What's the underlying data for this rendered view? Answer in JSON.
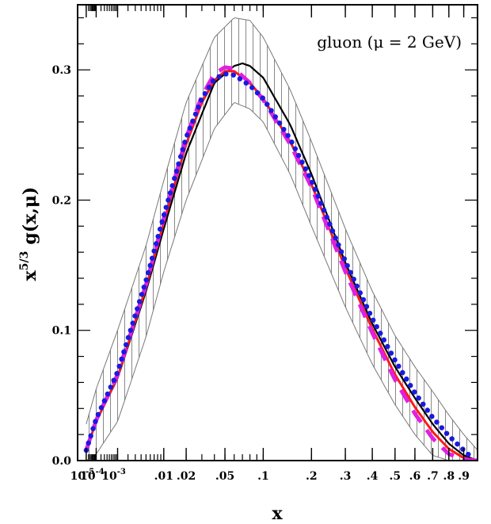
{
  "chart_data": {
    "type": "line",
    "title": "gluon (μ = 2 GeV)",
    "xlabel": "x",
    "ylabel": "x⁵ᐟ³ g(x,μ)",
    "ylabel_parts": {
      "base": "x",
      "exp": "5/3",
      "rest": "g(x,μ)"
    },
    "x_scale": "x^(1/3)",
    "xlim": [
      0,
      1
    ],
    "ylim": [
      0,
      0.35
    ],
    "y_ticks": [
      0.0,
      0.1,
      0.2,
      0.3
    ],
    "y_tick_labels": [
      "0.0",
      "0.1",
      "0.2",
      "0.3"
    ],
    "x_ticks": [
      {
        "v": 1e-05,
        "label": "10",
        "sup": "-5"
      },
      {
        "v": 0.0001,
        "label": "10",
        "sup": "-4"
      },
      {
        "v": 0.001,
        "label": "10",
        "sup": "-3"
      },
      {
        "v": 0.01,
        "label": ".01"
      },
      {
        "v": 0.02,
        "label": ".02"
      },
      {
        "v": 0.05,
        "label": ".05"
      },
      {
        "v": 0.1,
        "label": ".1"
      },
      {
        "v": 0.2,
        "label": ".2"
      },
      {
        "v": 0.3,
        "label": ".3"
      },
      {
        "v": 0.4,
        "label": ".4"
      },
      {
        "v": 0.5,
        "label": ".5"
      },
      {
        "v": 0.6,
        "label": ".6"
      },
      {
        "v": 0.7,
        "label": ".7"
      },
      {
        "v": 0.8,
        "label": ".8"
      },
      {
        "v": 0.9,
        "label": ".9"
      }
    ],
    "band": {
      "x": [
        1e-05,
        0.0001,
        0.001,
        0.005,
        0.01,
        0.02,
        0.04,
        0.06,
        0.08,
        0.1,
        0.15,
        0.2,
        0.3,
        0.4,
        0.5,
        0.6,
        0.7,
        0.8,
        0.9,
        1.0
      ],
      "upper": [
        0.028,
        0.055,
        0.1,
        0.165,
        0.215,
        0.275,
        0.325,
        0.34,
        0.338,
        0.325,
        0.285,
        0.245,
        0.178,
        0.13,
        0.096,
        0.072,
        0.053,
        0.035,
        0.02,
        0.008
      ],
      "lower": [
        0.0,
        0.005,
        0.03,
        0.095,
        0.145,
        0.2,
        0.255,
        0.275,
        0.27,
        0.26,
        0.22,
        0.18,
        0.118,
        0.074,
        0.043,
        0.02,
        0.004,
        0.0,
        0.0,
        0.0
      ]
    },
    "series": [
      {
        "color": "#000000",
        "style": "solid",
        "x": [
          1e-05,
          0.0001,
          0.001,
          0.005,
          0.01,
          0.02,
          0.04,
          0.06,
          0.07,
          0.08,
          0.1,
          0.15,
          0.2,
          0.3,
          0.4,
          0.5,
          0.6,
          0.7,
          0.8,
          0.9,
          1.0
        ],
        "y": [
          0.008,
          0.03,
          0.063,
          0.13,
          0.178,
          0.236,
          0.29,
          0.303,
          0.305,
          0.303,
          0.294,
          0.258,
          0.22,
          0.152,
          0.105,
          0.072,
          0.048,
          0.028,
          0.013,
          0.004,
          0.0
        ]
      },
      {
        "color": "#ff1a1a",
        "style": "solid",
        "x": [
          1e-05,
          0.0001,
          0.001,
          0.005,
          0.01,
          0.02,
          0.03,
          0.04,
          0.05,
          0.06,
          0.08,
          0.1,
          0.15,
          0.2,
          0.3,
          0.4,
          0.5,
          0.6,
          0.7,
          0.8,
          0.9,
          1.0
        ],
        "y": [
          0.008,
          0.03,
          0.064,
          0.133,
          0.183,
          0.243,
          0.275,
          0.292,
          0.299,
          0.299,
          0.29,
          0.278,
          0.245,
          0.212,
          0.148,
          0.101,
          0.066,
          0.041,
          0.022,
          0.009,
          0.002,
          0.0
        ]
      },
      {
        "color": "#e020e0",
        "style": "dashed",
        "x": [
          1e-05,
          0.0001,
          0.001,
          0.005,
          0.01,
          0.02,
          0.03,
          0.04,
          0.05,
          0.06,
          0.08,
          0.1,
          0.15,
          0.2,
          0.3,
          0.4,
          0.5,
          0.6,
          0.7,
          0.8,
          0.9,
          1.0
        ],
        "y": [
          0.008,
          0.031,
          0.066,
          0.135,
          0.186,
          0.248,
          0.28,
          0.297,
          0.302,
          0.301,
          0.29,
          0.277,
          0.243,
          0.21,
          0.145,
          0.098,
          0.062,
          0.036,
          0.017,
          0.005,
          0.001,
          0.0
        ]
      },
      {
        "color": "#1a1ae0",
        "style": "dotted",
        "x": [
          1e-05,
          0.0001,
          0.001,
          0.005,
          0.01,
          0.02,
          0.03,
          0.04,
          0.05,
          0.06,
          0.08,
          0.1,
          0.15,
          0.2,
          0.3,
          0.4,
          0.5,
          0.6,
          0.7,
          0.8,
          0.9,
          0.95
        ],
        "y": [
          0.008,
          0.032,
          0.068,
          0.138,
          0.188,
          0.248,
          0.278,
          0.293,
          0.297,
          0.296,
          0.288,
          0.278,
          0.247,
          0.215,
          0.153,
          0.109,
          0.077,
          0.052,
          0.033,
          0.019,
          0.008,
          0.003
        ]
      }
    ]
  }
}
